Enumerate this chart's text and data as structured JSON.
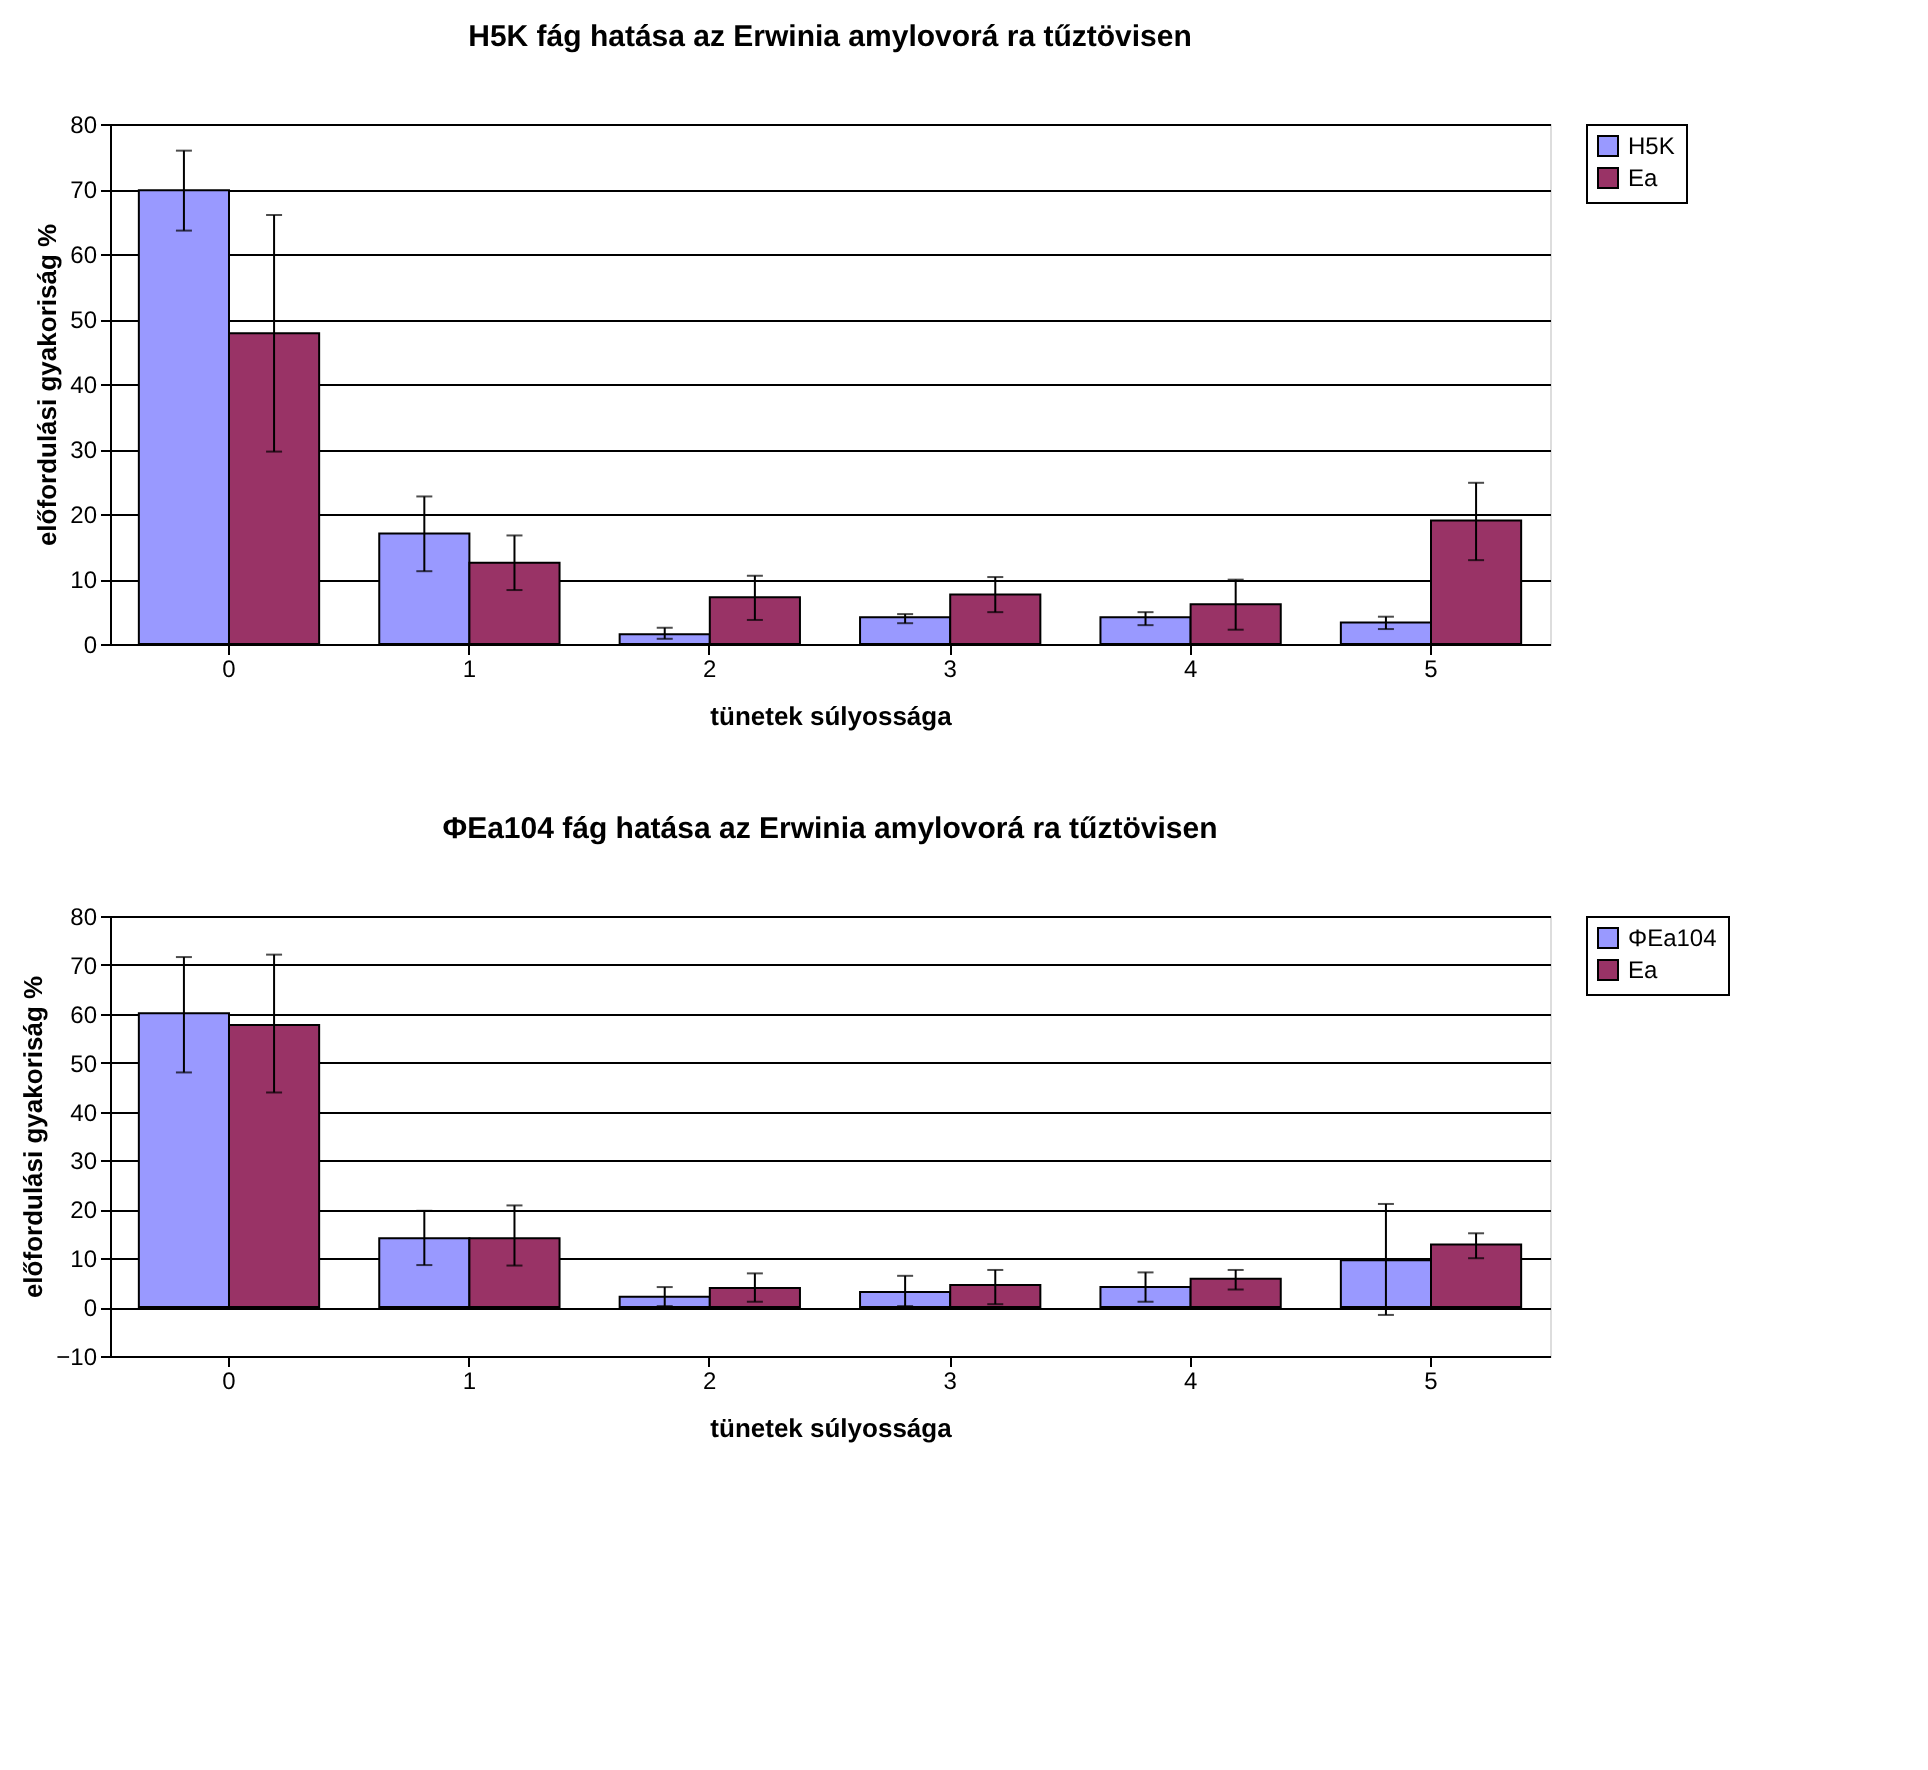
{
  "chart_data": [
    {
      "type": "bar",
      "title": "H5K fág hatása az Erwinia amylovorá ra tűztövisen",
      "xlabel": "tünetek súlyossága",
      "ylabel": "előfordulási gyakoriság %",
      "categories": [
        "0",
        "1",
        "2",
        "3",
        "4",
        "5"
      ],
      "ylim": [
        0,
        80
      ],
      "yticks": [
        0,
        10,
        20,
        30,
        40,
        50,
        60,
        70,
        80
      ],
      "grid": "y",
      "legend": "right",
      "series": [
        {
          "name": "H5K",
          "color": "#9999ff",
          "values": [
            69.8,
            17.0,
            1.5,
            4.1,
            4.1,
            3.3
          ],
          "errors": [
            [
              63.6,
              75.9
            ],
            [
              11.2,
              22.7
            ],
            [
              0.8,
              2.5
            ],
            [
              3.2,
              4.6
            ],
            [
              2.9,
              4.9
            ],
            [
              2.3,
              4.2
            ]
          ]
        },
        {
          "name": "Ea",
          "color": "#993366",
          "values": [
            47.8,
            12.5,
            7.2,
            7.6,
            6.1,
            19.0
          ],
          "errors": [
            [
              29.6,
              66.0
            ],
            [
              8.3,
              16.7
            ],
            [
              3.7,
              10.5
            ],
            [
              4.9,
              10.3
            ],
            [
              2.2,
              9.9
            ],
            [
              12.9,
              24.8
            ]
          ]
        }
      ]
    },
    {
      "type": "bar",
      "title": "ΦEa104 fág hatása az Erwinia amylovorá ra tűztövisen",
      "xlabel": "tünetek súlyossága",
      "ylabel": "előfordulási gyakoriság %",
      "categories": [
        "0",
        "1",
        "2",
        "3",
        "4",
        "5"
      ],
      "ylim": [
        -10,
        80
      ],
      "yticks": [
        -10,
        0,
        10,
        20,
        30,
        40,
        50,
        60,
        70,
        80
      ],
      "grid": "y",
      "legend": "right",
      "series": [
        {
          "name": "ΦEa104",
          "color": "#9999ff",
          "values": [
            60.1,
            14.1,
            2.1,
            3.1,
            4.1,
            9.6
          ],
          "errors": [
            [
              48.0,
              71.6
            ],
            [
              8.6,
              19.7
            ],
            [
              0.2,
              4.1
            ],
            [
              0.2,
              6.4
            ],
            [
              1.1,
              7.1
            ],
            [
              -1.6,
              21.1
            ]
          ]
        },
        {
          "name": "Ea",
          "color": "#993366",
          "values": [
            57.7,
            14.1,
            3.9,
            4.5,
            5.8,
            12.8
          ],
          "errors": [
            [
              43.9,
              72.1
            ],
            [
              8.5,
              20.8
            ],
            [
              1.1,
              6.9
            ],
            [
              0.6,
              7.6
            ],
            [
              3.6,
              7.6
            ],
            [
              10.0,
              15.1
            ]
          ]
        }
      ]
    }
  ]
}
